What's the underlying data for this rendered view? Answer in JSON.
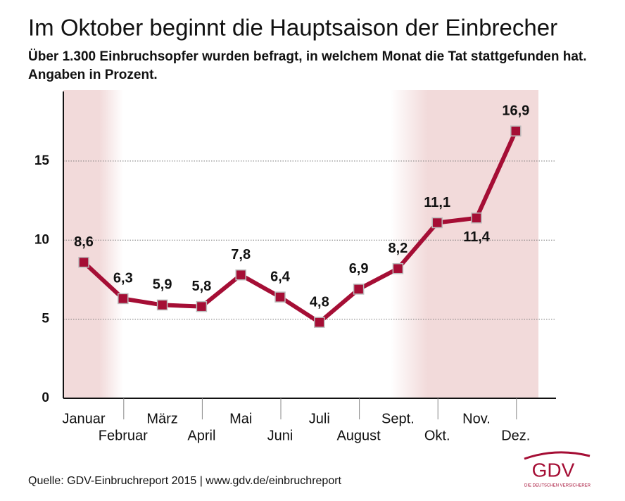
{
  "chart_data": {
    "type": "line",
    "title": "Im Oktober beginnt die Hauptsaison der Einbrecher",
    "subtitle": [
      "Über 1.300 Einbruchsopfer wurden befragt, in welchem Monat die Tat stattgefunden hat.",
      "Angaben in Prozent."
    ],
    "categories": [
      "Januar",
      "Februar",
      "März",
      "April",
      "Mai",
      "Juni",
      "Juli",
      "August",
      "Sept.",
      "Okt.",
      "Nov.",
      "Dez."
    ],
    "values": [
      8.6,
      6.3,
      5.9,
      5.8,
      7.8,
      6.4,
      4.8,
      6.9,
      8.2,
      11.1,
      11.4,
      16.9
    ],
    "value_labels": [
      "8,6",
      "6,3",
      "5,9",
      "5,8",
      "7,8",
      "6,4",
      "4,8",
      "6,9",
      "8,2",
      "11,1",
      "11,4",
      "16,9"
    ],
    "color": "#a50e35",
    "ylim": [
      0,
      19.4
    ],
    "yticks": [
      0,
      5,
      10,
      15
    ],
    "grid": true,
    "source": "Quelle: GDV-Einbruchreport 2015 | www.gdv.de/einbruchreport",
    "logo": {
      "text": "GDV",
      "tagline": "DIE DEUTSCHEN VERSICHERER"
    }
  }
}
